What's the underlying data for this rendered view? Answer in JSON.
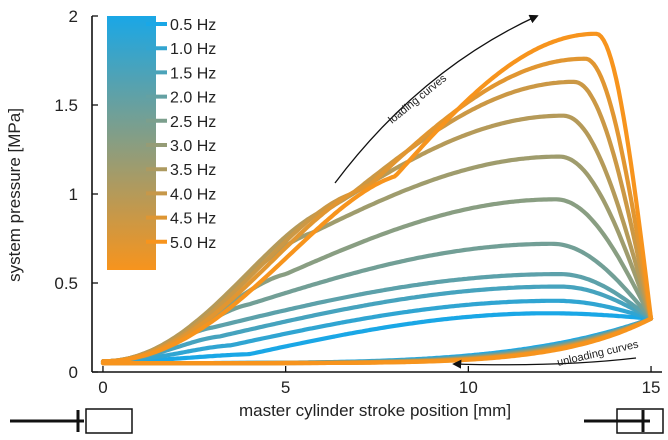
{
  "chart_data": {
    "type": "line",
    "title": "",
    "xlabel": "master cylinder stroke position [mm]",
    "ylabel": "system pressure [MPa]",
    "xlim": [
      -0.3,
      15.3
    ],
    "ylim": [
      0,
      2.0
    ],
    "xticks": [
      0,
      5,
      10,
      15
    ],
    "xtick_labels": [
      "0",
      "5",
      "10",
      "15"
    ],
    "yticks": [
      0,
      0.5,
      1,
      1.5,
      2
    ],
    "ytick_labels": [
      "0",
      "0.5",
      "1",
      "1.5",
      "2"
    ],
    "grid": false,
    "legend_position": "top-left",
    "color_start": "#1aa7e6",
    "color_end": "#f7941d",
    "annotations": {
      "loading": "loading curves",
      "unloading": "unloading curves"
    },
    "series": [
      {
        "name": "0.5 Hz",
        "peak_x": 12.2,
        "peak_y": 0.33,
        "shoulder_x": 4.0,
        "shoulder_y": 0.1
      },
      {
        "name": "1.0 Hz",
        "peak_x": 12.4,
        "peak_y": 0.4,
        "shoulder_x": 3.5,
        "shoulder_y": 0.15
      },
      {
        "name": "1.5 Hz",
        "peak_x": 12.5,
        "peak_y": 0.48,
        "shoulder_x": 3.2,
        "shoulder_y": 0.2
      },
      {
        "name": "2.0 Hz",
        "peak_x": 12.5,
        "peak_y": 0.55,
        "shoulder_x": 3.0,
        "shoulder_y": 0.25
      },
      {
        "name": "2.5 Hz",
        "peak_x": 12.3,
        "peak_y": 0.72,
        "shoulder_x": 4.0,
        "shoulder_y": 0.38
      },
      {
        "name": "3.0 Hz",
        "peak_x": 12.4,
        "peak_y": 0.97,
        "shoulder_x": 5.0,
        "shoulder_y": 0.55
      },
      {
        "name": "3.5 Hz",
        "peak_x": 12.5,
        "peak_y": 1.21,
        "shoulder_x": 5.7,
        "shoulder_y": 0.78
      },
      {
        "name": "4.0 Hz",
        "peak_x": 12.6,
        "peak_y": 1.44,
        "shoulder_x": 6.2,
        "shoulder_y": 0.92
      },
      {
        "name": "4.5 Hz",
        "peak_x": 12.9,
        "peak_y": 1.63,
        "shoulder_x": 6.8,
        "shoulder_y": 1.0
      },
      {
        "name": "5.0 Hz",
        "peak_x": 13.2,
        "peak_y": 1.76,
        "shoulder_x": 7.3,
        "shoulder_y": 1.05
      },
      {
        "name": "",
        "peak_x": 13.5,
        "peak_y": 1.9,
        "shoulder_x": 8.0,
        "shoulder_y": 1.1
      }
    ]
  }
}
